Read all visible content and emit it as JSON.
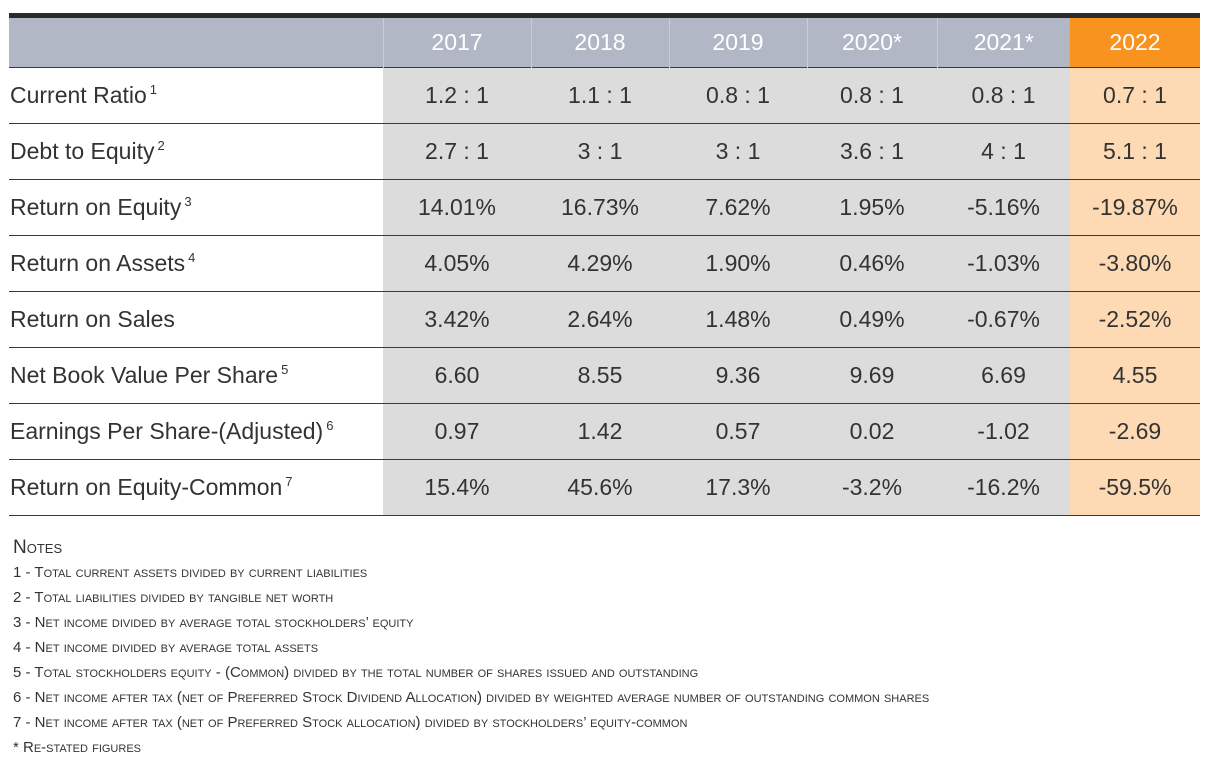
{
  "table": {
    "years": [
      "2017",
      "2018",
      "2019",
      "2020*",
      "2021*",
      "2022"
    ],
    "rows": [
      {
        "label": "Current Ratio",
        "note": "1",
        "values": [
          "1.2 : 1",
          "1.1 : 1",
          "0.8 : 1",
          "0.8 : 1",
          "0.8 : 1",
          "0.7 : 1"
        ]
      },
      {
        "label": "Debt to Equity",
        "note": "2",
        "values": [
          "2.7 : 1",
          "3 : 1",
          "3 : 1",
          "3.6 : 1",
          "4 : 1",
          "5.1 : 1"
        ]
      },
      {
        "label": "Return on Equity",
        "note": "3",
        "values": [
          "14.01%",
          "16.73%",
          "7.62%",
          "1.95%",
          "-5.16%",
          "-19.87%"
        ]
      },
      {
        "label": "Return on Assets",
        "note": "4",
        "values": [
          "4.05%",
          "4.29%",
          "1.90%",
          "0.46%",
          "-1.03%",
          "-3.80%"
        ]
      },
      {
        "label": "Return on Sales",
        "note": "",
        "values": [
          "3.42%",
          "2.64%",
          "1.48%",
          "0.49%",
          "-0.67%",
          "-2.52%"
        ]
      },
      {
        "label": "Net Book Value Per Share",
        "note": "5",
        "values": [
          "6.60",
          "8.55",
          "9.36",
          "9.69",
          "6.69",
          "4.55"
        ]
      },
      {
        "label": "Earnings Per Share-(Adjusted)",
        "note": "6",
        "values": [
          "0.97",
          "1.42",
          "0.57",
          "0.02",
          "-1.02",
          "-2.69"
        ]
      },
      {
        "label": "Return on Equity-Common",
        "note": "7",
        "values": [
          "15.4%",
          "45.6%",
          "17.3%",
          "-3.2%",
          "-16.2%",
          "-59.5%"
        ]
      }
    ]
  },
  "notes": {
    "title": "Notes",
    "lines": [
      "1 - Total current assets divided by current liabilities",
      "2 - Total liabilities divided by tangible net worth",
      "3 - Net income divided by average total stockholders’ equity",
      "4 - Net income divided by average total assets",
      "5 - Total stockholders equity - (Common) divided by the total number of shares issued and outstanding",
      "6 - Net income after tax (net of Preferred Stock Dividend Allocation) divided by weighted average number of outstanding common shares",
      "7 - Net income after tax (net of Preferred Stock allocation) divided by stockholders’ equity-common",
      "* Re-stated figures"
    ]
  },
  "colors": {
    "header_bg": "#b2b7c6",
    "highlight_header": "#f7931e",
    "highlight_cell": "#fddab3",
    "data_cell": "#dcdcdc"
  }
}
